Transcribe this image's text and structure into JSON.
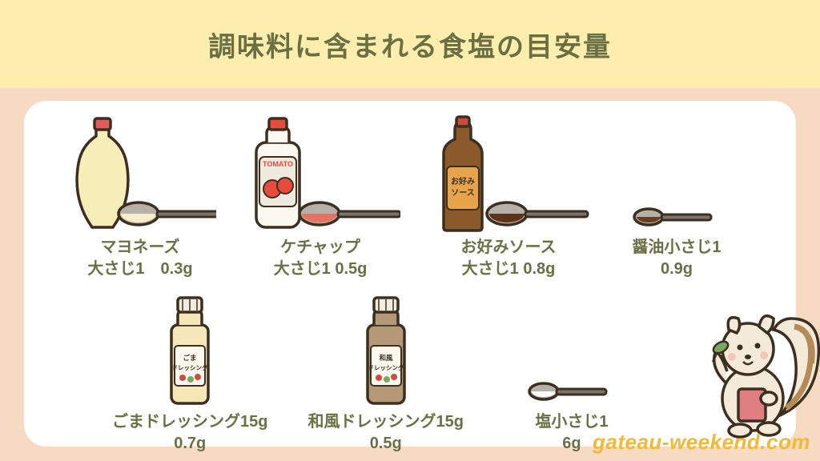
{
  "colors": {
    "header_bg": "#fdeeae",
    "body_bg": "#f7dac2",
    "panel_bg": "#ffffff",
    "title_text": "#6a7043",
    "label_text": "#6a7043",
    "watermark": "#f0b938",
    "stroke": "#3d2f1f",
    "mayo_body": "#f7edb9",
    "mayo_cap": "#e35a5d",
    "ketchup_body": "#faf8f0",
    "ketchup_label": "#eeeae0",
    "ketchup_red": "#e64b3c",
    "ketchup_cap": "#e64b3c",
    "okonomi_body": "#8b5a2b",
    "okonomi_label": "#e8a44a",
    "okonomi_cap": "#cc4a3a",
    "goma_body": "#f5e7b8",
    "goma_cap": "#f0ece0",
    "wafu_body": "#b59878",
    "wafu_cap": "#f0ece0",
    "spoon_metal": "#b7b0a8",
    "spoon_handle": "#7a746c",
    "soy_fill": "#6a3e1f",
    "okonomi_fill": "#5e3418",
    "ketchup_fill": "#e97063",
    "mayo_fill": "#f6eec8",
    "salt_fill": "#ffffff",
    "squirrel_body": "#f3ead9",
    "squirrel_stripe": "#b58a56",
    "squirrel_book": "#e07f82",
    "squirrel_leaf": "#7aa860"
  },
  "title": "調味料に含まれる食塩の目安量",
  "watermark": "gateau-weekend.com",
  "items_row1": [
    {
      "id": "mayo",
      "line1": "マヨネーズ",
      "line2": "大さじ1　0.3g"
    },
    {
      "id": "ketchup",
      "line1": "ケチャップ",
      "line2": "大さじ1 0.5g"
    },
    {
      "id": "okonomi",
      "line1": "お好みソース",
      "line2": "大さじ1 0.8g"
    },
    {
      "id": "soy",
      "line1": "醤油小さじ1",
      "line2": "0.9g"
    }
  ],
  "items_row2": [
    {
      "id": "goma",
      "line1": "ごまドレッシング15g",
      "line2": "0.7g"
    },
    {
      "id": "wafu",
      "line1": "和風ドレッシング15g",
      "line2": "0.5g"
    },
    {
      "id": "salt",
      "line1": "塩小さじ1",
      "line2": "6g"
    }
  ],
  "icon_text": {
    "tomato": "TOMATO",
    "okonomi_label": "お好み\nソース",
    "goma_label": "ごま\nドレッシング",
    "wafu_label": "和風\nドレッシング"
  }
}
